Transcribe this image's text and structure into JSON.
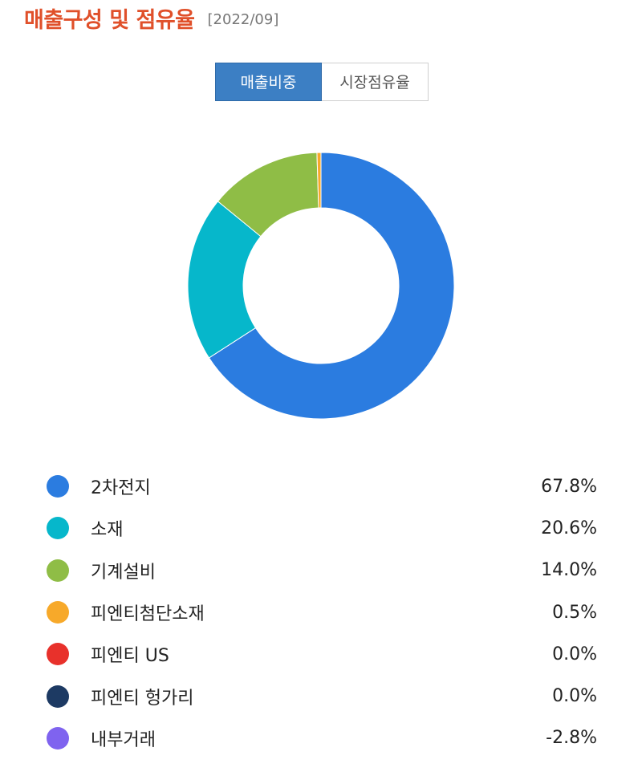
{
  "header": {
    "title": "매출구성 및 점유율",
    "date": "[2022/09]"
  },
  "tabs": [
    {
      "label": "매출비중",
      "active": true
    },
    {
      "label": "시장점유율",
      "active": false
    }
  ],
  "chart_data": {
    "type": "pie",
    "variant": "donut",
    "categories": [
      "2차전지",
      "소재",
      "기계설비",
      "피엔티첨단소재",
      "피엔티 US",
      "피엔티 헝가리",
      "내부거래"
    ],
    "values": [
      67.8,
      20.6,
      14.0,
      0.5,
      0.0,
      0.0,
      -2.8
    ],
    "labels": [
      "67.8%",
      "20.6%",
      "14.0%",
      "0.5%",
      "0.0%",
      "0.0%",
      "-2.8%"
    ],
    "colors": [
      "#2b7ce0",
      "#06b7cb",
      "#8fbd46",
      "#f7a92a",
      "#e8312b",
      "#1d3a63",
      "#7f63ef"
    ],
    "legend_position": "bottom"
  }
}
